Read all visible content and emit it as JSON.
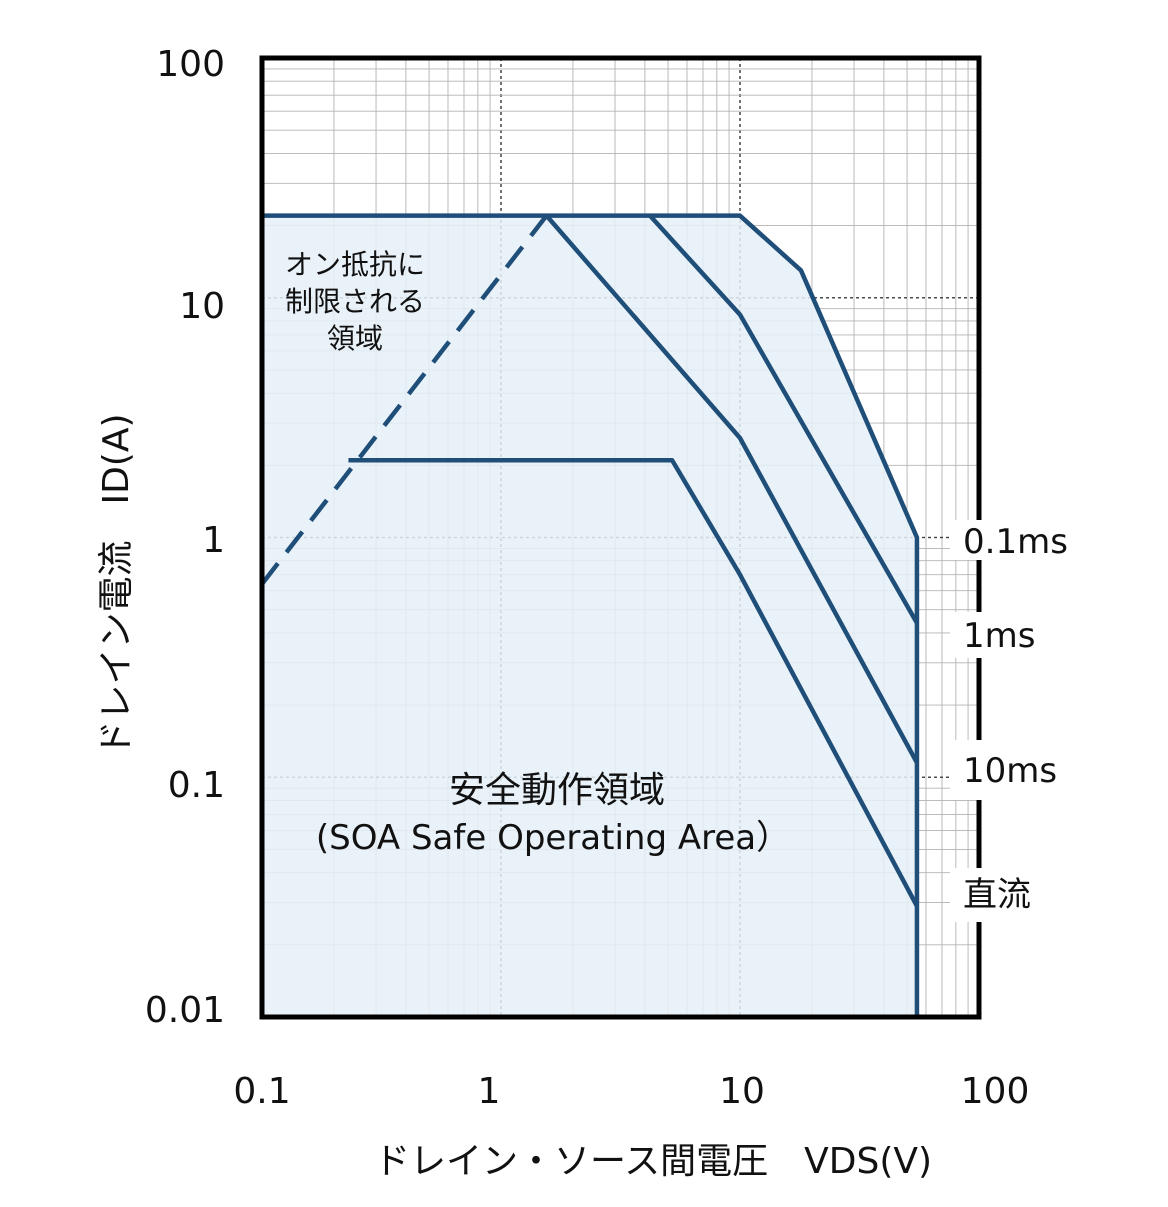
{
  "chart_data": {
    "type": "line",
    "x_scale": "log",
    "y_scale": "log",
    "xlim": [
      0.1,
      100
    ],
    "ylim": [
      0.01,
      100
    ],
    "grid": true,
    "x_ticks": [
      "0.1",
      "1",
      "10",
      "100"
    ],
    "y_ticks": [
      "100",
      "10",
      "1",
      "0.1",
      "0.01"
    ],
    "xlabel": "ドレイン・ソース間電圧　VDS(V)",
    "ylabel": "ドレイン電流　ID(A)",
    "colors": {
      "boundary": "#1f4e79",
      "area_fill": "#e6f0f8",
      "grid": "#b3b3b3",
      "frame": "#000000"
    },
    "series": [
      {
        "name": "0.1ms",
        "points": [
          [
            0.1,
            22
          ],
          [
            10,
            22
          ],
          [
            18,
            13
          ],
          [
            55,
            1
          ],
          [
            55,
            0.01
          ]
        ]
      },
      {
        "name": "1ms",
        "points": [
          [
            4.2,
            22
          ],
          [
            10,
            8.5
          ],
          [
            55,
            0.44
          ]
        ]
      },
      {
        "name": "10ms",
        "points": [
          [
            1.55,
            22
          ],
          [
            10,
            2.6
          ],
          [
            55,
            0.115
          ]
        ]
      },
      {
        "name": "直流",
        "points": [
          [
            0.23,
            2.1
          ],
          [
            5.2,
            2.1
          ],
          [
            10,
            0.7
          ],
          [
            55,
            0.029
          ]
        ]
      },
      {
        "points": [
          [
            0.1,
            0.64
          ],
          [
            1.55,
            22
          ]
        ],
        "dashed": true
      }
    ],
    "safe_area_boundary": [
      [
        0.1,
        0.01
      ],
      [
        0.1,
        22
      ],
      [
        10,
        22
      ],
      [
        18,
        13
      ],
      [
        55,
        1
      ],
      [
        55,
        0.01
      ]
    ],
    "series_labels": [
      "0.1ms",
      "1ms",
      "10ms",
      "直流"
    ],
    "annotations": {
      "on_resistance_region": [
        "オン抵抗に",
        "制限される",
        "領域"
      ],
      "soa_title": "安全動作領域",
      "soa_subtitle": "(SOA Safe Operating Area）"
    }
  }
}
